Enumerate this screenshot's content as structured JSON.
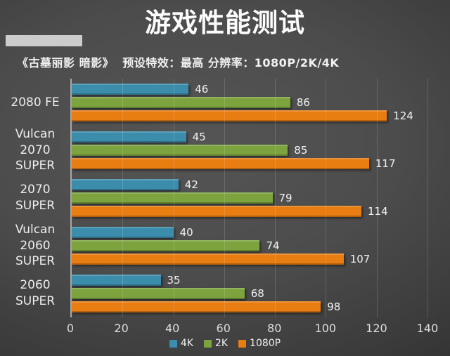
{
  "chart_data": {
    "type": "bar",
    "orientation": "horizontal-grouped",
    "title": "游戏性能测试",
    "subtitle": "《古墓丽影 暗影》  预设特效：最高 分辨率：1080P/2K/4K",
    "categories": [
      "2080 FE",
      "Vulcan 2070\nSUPER",
      "2070 SUPER",
      "Vulcan 2060\nSUPER",
      "2060 SUPER"
    ],
    "series": [
      {
        "name": "4K",
        "color": "#3b8dab",
        "values": [
          46,
          45,
          42,
          40,
          35
        ]
      },
      {
        "name": "2K",
        "color": "#7ca33d",
        "values": [
          86,
          85,
          79,
          74,
          68
        ]
      },
      {
        "name": "1080P",
        "color": "#e87d12",
        "values": [
          124,
          117,
          114,
          107,
          98
        ]
      }
    ],
    "xlim": [
      0,
      140
    ],
    "xticks": [
      0,
      20,
      40,
      60,
      80,
      100,
      120,
      140
    ],
    "grid": "vertical-lines",
    "legend_position": "bottom",
    "colors": {
      "background_center": "#4c4c4c",
      "background_edge": "#282828",
      "axis_line": "#a8a8a8",
      "text": "#f1f1f1"
    }
  }
}
